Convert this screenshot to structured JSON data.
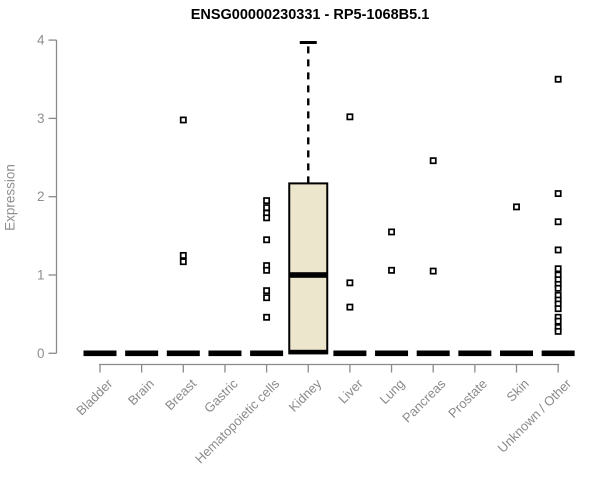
{
  "colors": {
    "box_fill": "#ECE6CC",
    "axis_gray": "#8A8A8A",
    "label_gray": "#8F8F8F",
    "ink": "#000000",
    "background": "#FFFFFF"
  },
  "chart_data": {
    "type": "boxplot",
    "title": "ENSG00000230331 - RP5-1068B5.1",
    "xlabel": "",
    "ylabel": "Expression",
    "ylim": [
      0,
      4
    ],
    "yticks": [
      0,
      1,
      2,
      3,
      4
    ],
    "grid": false,
    "legend": "none",
    "marker": "open-square",
    "categories": [
      "Bladder",
      "Brain",
      "Breast",
      "Gastric",
      "Hematopoietic cells",
      "Kidney",
      "Liver",
      "Lung",
      "Pancreas",
      "Prostate",
      "Skin",
      "Unknown / Other"
    ],
    "series": [
      {
        "category": "Bladder",
        "q1": 0,
        "median": 0,
        "q3": 0,
        "whisker_low": 0,
        "whisker_high": 0,
        "outliers": []
      },
      {
        "category": "Brain",
        "q1": 0,
        "median": 0,
        "q3": 0,
        "whisker_low": 0,
        "whisker_high": 0,
        "outliers": []
      },
      {
        "category": "Breast",
        "q1": 0,
        "median": 0,
        "q3": 0,
        "whisker_low": 0,
        "whisker_high": 0,
        "outliers": [
          2.98,
          1.25,
          1.17
        ]
      },
      {
        "category": "Gastric",
        "q1": 0,
        "median": 0,
        "q3": 0,
        "whisker_low": 0,
        "whisker_high": 0,
        "outliers": []
      },
      {
        "category": "Hematopoietic cells",
        "q1": 0,
        "median": 0,
        "q3": 0,
        "whisker_low": 0,
        "whisker_high": 0,
        "outliers": [
          1.95,
          1.86,
          1.79,
          1.73,
          1.45,
          1.12,
          1.06,
          0.8,
          0.71,
          0.46
        ]
      },
      {
        "category": "Kidney",
        "q1": 0,
        "median": 1.0,
        "q3": 2.17,
        "whisker_low": 0,
        "whisker_high": 3.97,
        "outliers": []
      },
      {
        "category": "Liver",
        "q1": 0,
        "median": 0,
        "q3": 0,
        "whisker_low": 0,
        "whisker_high": 0,
        "outliers": [
          3.02,
          0.9,
          0.59
        ]
      },
      {
        "category": "Lung",
        "q1": 0,
        "median": 0,
        "q3": 0,
        "whisker_low": 0,
        "whisker_high": 0,
        "outliers": [
          1.55,
          1.06
        ]
      },
      {
        "category": "Pancreas",
        "q1": 0,
        "median": 0,
        "q3": 0,
        "whisker_low": 0,
        "whisker_high": 0,
        "outliers": [
          2.46,
          1.05
        ]
      },
      {
        "category": "Prostate",
        "q1": 0,
        "median": 0,
        "q3": 0,
        "whisker_low": 0,
        "whisker_high": 0,
        "outliers": []
      },
      {
        "category": "Skin",
        "q1": 0,
        "median": 0,
        "q3": 0,
        "whisker_low": 0,
        "whisker_high": 0,
        "outliers": [
          1.87
        ]
      },
      {
        "category": "Unknown / Other",
        "q1": 0,
        "median": 0,
        "q3": 0,
        "whisker_low": 0,
        "whisker_high": 0,
        "outliers": [
          3.5,
          2.04,
          1.68,
          1.32,
          1.08,
          1.0,
          0.94,
          0.88,
          0.83,
          0.74,
          0.68,
          0.63,
          0.57,
          0.46,
          0.41,
          0.33,
          0.28
        ]
      }
    ]
  }
}
